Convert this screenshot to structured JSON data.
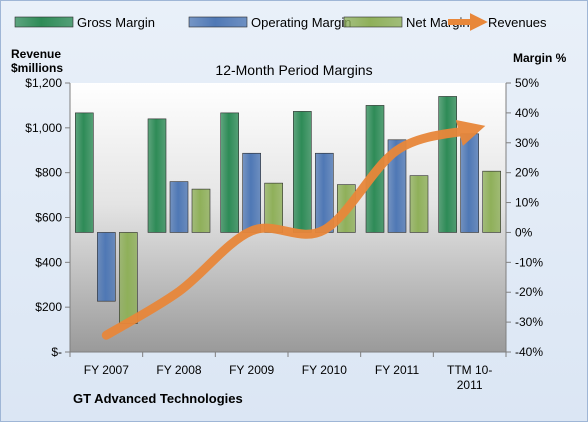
{
  "chart_data": {
    "type": "bar",
    "title": "12-Month Period Margins",
    "company": "GT Advanced Technologies",
    "y_left_label_line1": "Revenue",
    "y_left_label_line2": "$millions",
    "y_right_label": "Margin %",
    "categories": [
      "FY 2007",
      "FY 2008",
      "FY 2009",
      "FY 2010",
      "FY 2011",
      "TTM 10-2011"
    ],
    "category_labels": [
      [
        "FY 2007"
      ],
      [
        "FY 2008"
      ],
      [
        "FY 2009"
      ],
      [
        "FY 2010"
      ],
      [
        "FY 2011"
      ],
      [
        "TTM 10-",
        "2011"
      ]
    ],
    "left_axis": {
      "min": 0,
      "max": 1200,
      "ticks": [
        0,
        200,
        400,
        600,
        800,
        1000,
        1200
      ],
      "tick_labels": [
        "$-",
        "$200",
        "$400",
        "$600",
        "$800",
        "$1,000",
        "$1,200"
      ]
    },
    "right_axis": {
      "min": -40,
      "max": 50,
      "ticks": [
        -40,
        -30,
        -20,
        -10,
        0,
        10,
        20,
        30,
        40,
        50
      ],
      "tick_labels": [
        "-40%",
        "-30%",
        "-20%",
        "-10%",
        "0%",
        "10%",
        "20%",
        "30%",
        "40%",
        "50%"
      ]
    },
    "series": [
      {
        "name": "Gross Margin",
        "axis": "right",
        "color": "#2e8b57",
        "values": [
          40,
          38,
          40,
          40.5,
          42.5,
          45.5
        ]
      },
      {
        "name": "Operating Margin",
        "axis": "right",
        "color": "#4f78b5",
        "values": [
          -23,
          17,
          26.5,
          26.5,
          31,
          33
        ]
      },
      {
        "name": "Net Margin",
        "axis": "right",
        "color": "#8fb05a",
        "values": [
          -30.5,
          14.5,
          16.5,
          16,
          19,
          20.5
        ]
      }
    ],
    "line_series": {
      "name": "Revenues",
      "axis": "left",
      "color": "#e8873a",
      "values": [
        75,
        270,
        540,
        545,
        900,
        990
      ]
    },
    "grid": false,
    "legend_position": "top"
  }
}
